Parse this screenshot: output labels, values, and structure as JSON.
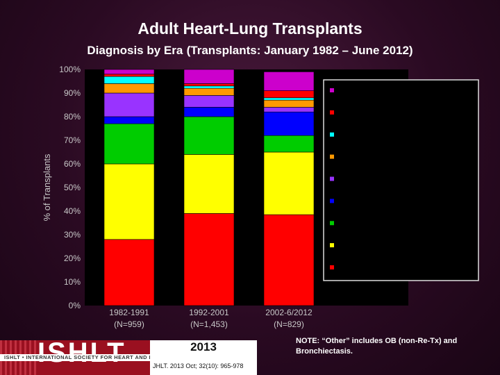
{
  "title": "Adult Heart-Lung Transplants",
  "subtitle_main": "Diagnosis by Era",
  "subtitle_paren": "(Transplants: January 1982 – June 2012)",
  "note": "NOTE: “Other” includes OB (non-Re-Tx) and Bronchiectasis.",
  "logo": {
    "acronym": "ISHLT",
    "band_text": "ISHLT • INTERNATIONAL SOCIETY FOR HEART AND LUNG TRANSPLANTATION",
    "year": "2013",
    "citation": "JHLT. 2013 Oct; 32(10): 965-978"
  },
  "colors": {
    "plot_bg": "#000000",
    "text": "#ffffff",
    "axis_text": "#c8c8c8"
  },
  "chart_data": {
    "type": "bar",
    "stacked": true,
    "ylabel": "% of Transplants",
    "xlabel": "",
    "ylim": [
      0,
      100
    ],
    "yticks": [
      "0%",
      "10%",
      "20%",
      "30%",
      "40%",
      "50%",
      "60%",
      "70%",
      "80%",
      "90%",
      "100%"
    ],
    "categories": [
      [
        "1982-1991",
        "(N=959)"
      ],
      [
        "1992-2001",
        "(N=1,453)"
      ],
      [
        "2002-6/2012",
        "(N=829)"
      ]
    ],
    "legend": {
      "placement": "right",
      "labels_visible": false
    },
    "series": [
      {
        "color": "#ff0000",
        "values": [
          28,
          39,
          38.5
        ]
      },
      {
        "color": "#ffff00",
        "values": [
          32,
          25,
          26.5
        ]
      },
      {
        "color": "#00cc00",
        "values": [
          17,
          16,
          7
        ]
      },
      {
        "color": "#0000ff",
        "values": [
          3,
          4,
          10
        ]
      },
      {
        "color": "#9933ff",
        "values": [
          10,
          5,
          2
        ]
      },
      {
        "color": "#ff9900",
        "values": [
          4,
          3,
          3
        ]
      },
      {
        "color": "#00ffff",
        "values": [
          3,
          1,
          1
        ]
      },
      {
        "color": "#ff0000",
        "values": [
          1,
          1,
          3
        ]
      },
      {
        "color": "#cc00cc",
        "values": [
          2,
          6,
          8
        ]
      }
    ]
  }
}
